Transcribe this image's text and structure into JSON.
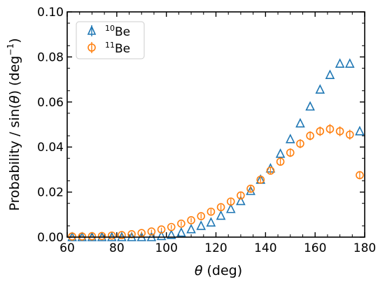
{
  "chart_data": {
    "type": "scatter",
    "xlabel_symbol": "θ",
    "xlabel_unit": "(deg)",
    "ylabel_pre": "Probability / sin(",
    "ylabel_symbol": "θ",
    "ylabel_post": ") (deg",
    "ylabel_exp": "−1",
    "ylabel_close": ")",
    "xlim": [
      60,
      180
    ],
    "ylim": [
      0,
      0.1
    ],
    "xticks": [
      60,
      80,
      100,
      120,
      140,
      160,
      180
    ],
    "xtick_labels": [
      "60",
      "80",
      "100",
      "120",
      "140",
      "160",
      "180"
    ],
    "yticks": [
      0,
      0.02,
      0.04,
      0.06,
      0.08,
      0.1
    ],
    "ytick_labels": [
      "0.00",
      "0.02",
      "0.04",
      "0.06",
      "0.08",
      "0.10"
    ],
    "legend_position": "top-left",
    "series": [
      {
        "name_sup": "10",
        "name": "Be",
        "marker": "triangle",
        "color": "#1f77b4",
        "x": [
          62,
          66,
          70,
          74,
          78,
          82,
          86,
          90,
          94,
          98,
          102,
          106,
          110,
          114,
          118,
          122,
          126,
          130,
          134,
          138,
          142,
          146,
          150,
          154,
          158,
          162,
          166,
          170,
          174,
          178
        ],
        "y": [
          0,
          0,
          0,
          0,
          0,
          0,
          0,
          0,
          0,
          0.0005,
          0.001,
          0.002,
          0.0035,
          0.005,
          0.0065,
          0.0095,
          0.0125,
          0.016,
          0.0205,
          0.0255,
          0.0305,
          0.037,
          0.0435,
          0.0505,
          0.058,
          0.0655,
          0.072,
          0.077,
          0.077,
          0.047
        ]
      },
      {
        "name_sup": "11",
        "name": "Be",
        "marker": "circle",
        "color": "#ff7f0e",
        "x": [
          62,
          66,
          70,
          74,
          78,
          82,
          86,
          90,
          94,
          98,
          102,
          106,
          110,
          114,
          118,
          122,
          126,
          130,
          134,
          138,
          142,
          146,
          150,
          154,
          158,
          162,
          166,
          170,
          174,
          178
        ],
        "y": [
          0.0003,
          0.0003,
          0.0004,
          0.0005,
          0.0007,
          0.0009,
          0.0013,
          0.0018,
          0.0025,
          0.0034,
          0.0045,
          0.006,
          0.0075,
          0.0093,
          0.0113,
          0.0133,
          0.0158,
          0.0185,
          0.0215,
          0.0255,
          0.0295,
          0.0335,
          0.0375,
          0.0415,
          0.045,
          0.047,
          0.048,
          0.047,
          0.0455,
          0.0275
        ],
        "err": [
          0.0006,
          0.0006,
          0.0006,
          0.0006,
          0.0006,
          0.0006,
          0.0007,
          0.0007,
          0.0008,
          0.0008,
          0.0009,
          0.001,
          0.001,
          0.0011,
          0.0012,
          0.0012,
          0.0013,
          0.0014,
          0.0015,
          0.0016,
          0.0017,
          0.0018,
          0.0019,
          0.002,
          0.002,
          0.0021,
          0.0022,
          0.0022,
          0.0022,
          0.0018
        ]
      }
    ]
  }
}
